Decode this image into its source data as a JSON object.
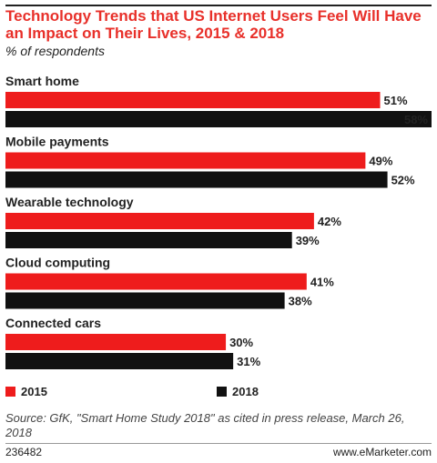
{
  "title": "Technology Trends that US Internet Users Feel Will Have an Impact on Their Lives, 2015 & 2018",
  "subtitle": "% of respondents",
  "source": "Source: GfK, \"Smart Home Study 2018\" as cited in press release, March 26, 2018",
  "footer": {
    "id": "236482",
    "brand": "www.eMarketer.com"
  },
  "colors": {
    "series_2015": "#ee1c1c",
    "series_2018": "#111111",
    "title": "#e8302a"
  },
  "chart_data": {
    "type": "bar",
    "orientation": "horizontal",
    "categories": [
      "Smart home",
      "Mobile payments",
      "Wearable technology",
      "Cloud computing",
      "Connected cars"
    ],
    "series": [
      {
        "name": "2015",
        "values": [
          51,
          49,
          42,
          41,
          30
        ]
      },
      {
        "name": "2018",
        "values": [
          58,
          52,
          39,
          38,
          31
        ]
      }
    ],
    "value_suffix": "%",
    "xlim": [
      0,
      58
    ],
    "legend": "bottom",
    "grid": false
  }
}
